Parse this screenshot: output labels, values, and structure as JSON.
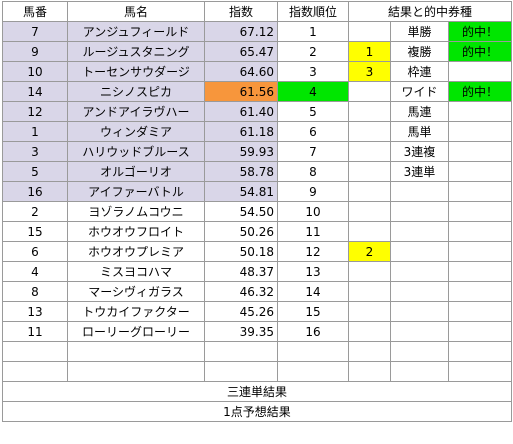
{
  "headers": {
    "bango": "馬番",
    "bamei": "馬名",
    "shisu": "指数",
    "juni": "指数順位",
    "kekka": "結果と的中券種"
  },
  "rows": [
    {
      "num": "7",
      "name": "アンジュフィールド",
      "score": "67.12",
      "rank": "1",
      "result": "",
      "bet": "単勝",
      "hit": "的中！"
    },
    {
      "num": "9",
      "name": "ルージュスタニング",
      "score": "65.47",
      "rank": "2",
      "result": "1",
      "bet": "複勝",
      "hit": "的中！"
    },
    {
      "num": "10",
      "name": "トーセンサウダージ",
      "score": "64.60",
      "rank": "3",
      "result": "3",
      "bet": "枠連",
      "hit": ""
    },
    {
      "num": "14",
      "name": "ニシノスピカ",
      "score": "61.56",
      "rank": "4",
      "result": "",
      "bet": "ワイド",
      "hit": "的中！"
    },
    {
      "num": "12",
      "name": "アンドアイラヴハー",
      "score": "61.40",
      "rank": "5",
      "result": "",
      "bet": "馬連",
      "hit": ""
    },
    {
      "num": "1",
      "name": "ウィンダミア",
      "score": "61.18",
      "rank": "6",
      "result": "",
      "bet": "馬単",
      "hit": ""
    },
    {
      "num": "3",
      "name": "ハリウッドブルース",
      "score": "59.93",
      "rank": "7",
      "result": "",
      "bet": "3連複",
      "hit": ""
    },
    {
      "num": "5",
      "name": "オルゴーリオ",
      "score": "58.78",
      "rank": "8",
      "result": "",
      "bet": "3連単",
      "hit": ""
    },
    {
      "num": "16",
      "name": "アイファーバトル",
      "score": "54.81",
      "rank": "9",
      "result": "",
      "bet": "",
      "hit": ""
    },
    {
      "num": "2",
      "name": "ヨゾラノムコウニ",
      "score": "54.50",
      "rank": "10",
      "result": "",
      "bet": "",
      "hit": ""
    },
    {
      "num": "15",
      "name": "ホウオウフロイト",
      "score": "50.26",
      "rank": "11",
      "result": "",
      "bet": "",
      "hit": ""
    },
    {
      "num": "6",
      "name": "ホウオウプレミア",
      "score": "50.18",
      "rank": "12",
      "result": "2",
      "bet": "",
      "hit": ""
    },
    {
      "num": "4",
      "name": "ミスヨコハマ",
      "score": "48.37",
      "rank": "13",
      "result": "",
      "bet": "",
      "hit": ""
    },
    {
      "num": "8",
      "name": "マーシヴィガラス",
      "score": "46.32",
      "rank": "14",
      "result": "",
      "bet": "",
      "hit": ""
    },
    {
      "num": "13",
      "name": "トウカイファクター",
      "score": "45.26",
      "rank": "15",
      "result": "",
      "bet": "",
      "hit": ""
    },
    {
      "num": "11",
      "name": "ローリーグローリー",
      "score": "39.35",
      "rank": "16",
      "result": "",
      "bet": "",
      "hit": ""
    }
  ],
  "footer": {
    "sanrentan": "三連単結果",
    "yoso": "1点予想結果"
  },
  "colors": {
    "lavender": "#d9d6e8",
    "orange": "#f7963c",
    "green": "#00e600",
    "yellow": "#ffff00"
  }
}
